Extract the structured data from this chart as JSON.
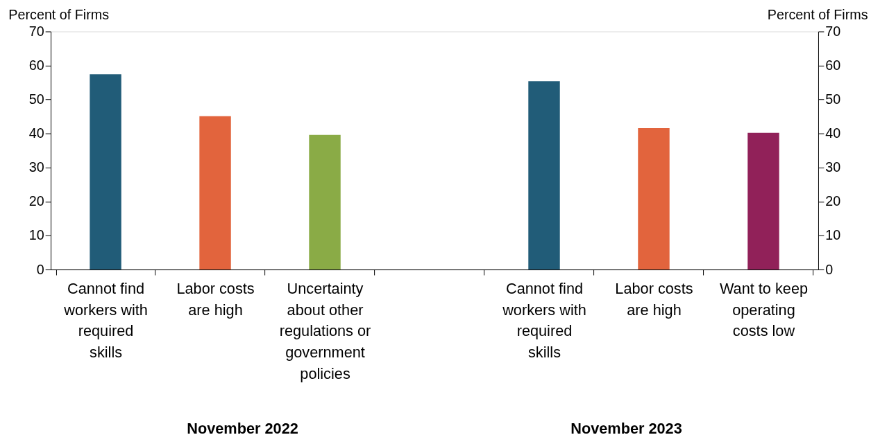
{
  "chart_data": {
    "type": "bar",
    "categories": [
      "Cannot find workers with required skills",
      "Labor costs are high",
      "Uncertainty about other regulations or government policies",
      null,
      "Cannot find workers with required skills",
      "Labor costs are high",
      "Want to keep operating costs low"
    ],
    "values": [
      57.4,
      45.1,
      39.6,
      null,
      55.4,
      41.6,
      40.2
    ],
    "colors": [
      "#215c78",
      "#e2643d",
      "#8aab46",
      "#ffffff",
      "#215c78",
      "#e2643d",
      "#912159"
    ],
    "ylabel": "Percent of Firms",
    "y2label": "Percent of Firms",
    "ylim": [
      0,
      70
    ],
    "yticks": [
      0,
      10,
      20,
      30,
      40,
      50,
      60,
      70
    ],
    "y2lim": [
      0,
      70
    ],
    "y2ticks": [
      0,
      10,
      20,
      30,
      40,
      50,
      60,
      70
    ],
    "annotations": [
      "November 2022",
      "November 2023"
    ],
    "grid": false,
    "legend": false
  }
}
